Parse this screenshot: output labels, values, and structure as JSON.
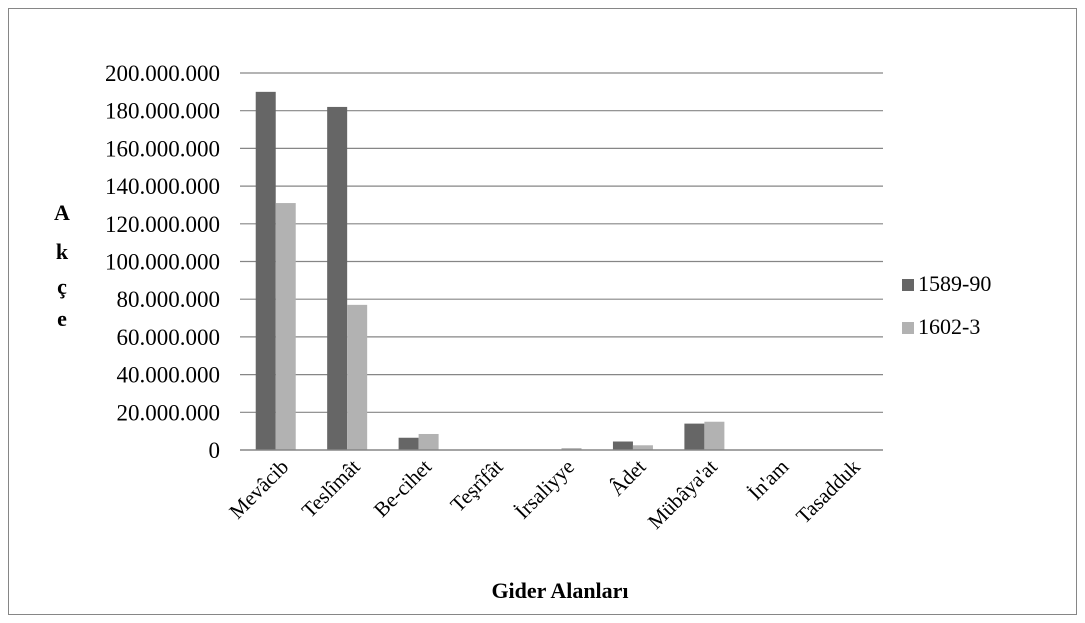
{
  "chart_data": {
    "type": "bar",
    "title": "",
    "xlabel": "Gider Alanları",
    "ylabel": "Akçe",
    "ylabel_letters": [
      "A",
      "k",
      "ç",
      "e"
    ],
    "ylim": [
      0,
      200000000
    ],
    "yticks": [
      0,
      20000000,
      40000000,
      60000000,
      80000000,
      100000000,
      120000000,
      140000000,
      160000000,
      180000000,
      200000000
    ],
    "ytick_labels": [
      "0",
      "20.000.000",
      "40.000.000",
      "60.000.000",
      "80.000.000",
      "100.000.000",
      "120.000.000",
      "140.000.000",
      "160.000.000",
      "180.000.000",
      "200.000.000"
    ],
    "categories": [
      "Mevâcib",
      "Teslîmât",
      "Be-cihet",
      "Teşrîfât",
      "İrsaliyye",
      "Âdet",
      "Mübâya'at",
      "İn'am",
      "Tasadduk"
    ],
    "series": [
      {
        "name": "1589-90",
        "color": "#666666",
        "values": [
          190000000,
          182000000,
          6500000,
          300000,
          0,
          4500000,
          14000000,
          0,
          0
        ]
      },
      {
        "name": "1602-3",
        "color": "#b2b2b2",
        "values": [
          131000000,
          77000000,
          8500000,
          0,
          1000000,
          2500000,
          15000000,
          0,
          0
        ]
      }
    ],
    "grid": true,
    "legend_position": "right"
  }
}
